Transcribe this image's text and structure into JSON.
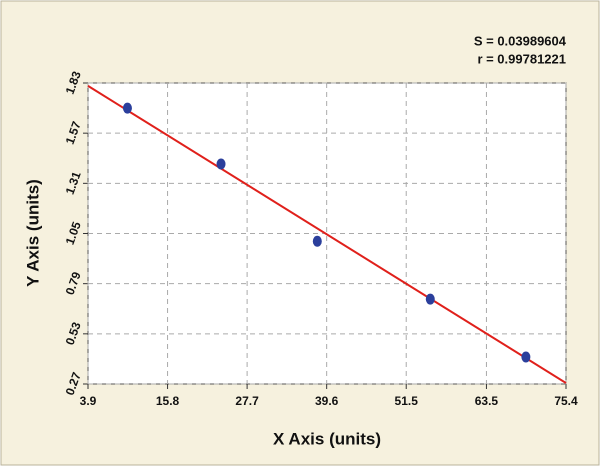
{
  "chart_data": {
    "type": "scatter",
    "x_label": "X Axis (units)",
    "y_label": "Y Axis (units)",
    "annotations": [
      "S = 0.03989604",
      "r = 0.99781221"
    ],
    "x": [
      9.8,
      23.8,
      38.2,
      55.1,
      69.4
    ],
    "y": [
      1.7,
      1.41,
      1.01,
      0.71,
      0.41
    ],
    "color": "#2b3f9c",
    "fit": {
      "x": [
        3.9,
        75.4
      ],
      "y": [
        1.815,
        0.275
      ],
      "color": "#e0201b"
    },
    "xlim": [
      3.9,
      75.4
    ],
    "ylim": [
      0.27,
      1.83
    ],
    "xticks": [
      3.9,
      15.8,
      27.7,
      39.6,
      51.5,
      63.5,
      75.4
    ],
    "yticks": [
      0.27,
      0.53,
      0.79,
      1.05,
      1.31,
      1.57,
      1.83
    ],
    "grid": true
  }
}
